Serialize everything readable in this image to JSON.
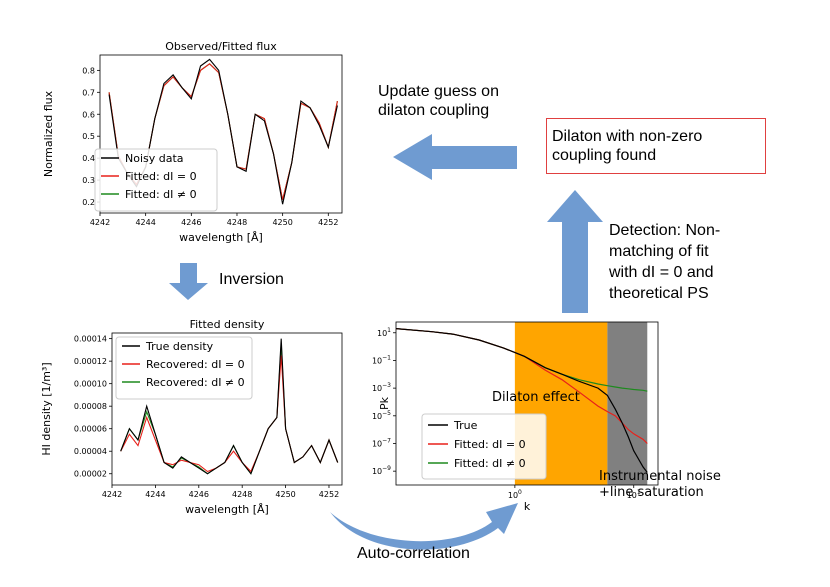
{
  "colors": {
    "arrow": "#6f9bd1",
    "black": "#000000",
    "red": "#e8201a",
    "green": "#1e8a1e",
    "orange": "#ffa500",
    "grey": "#808080",
    "box_border": "#e04040"
  },
  "labels": {
    "update_guess": [
      "Update guess on",
      "dilaton coupling"
    ],
    "found": [
      "Dilaton with non-zero",
      "coupling found"
    ],
    "detection": [
      "Detection: Non-",
      "matching of fit",
      "with dI = 0 and",
      "theoretical PS"
    ],
    "inversion": "Inversion",
    "autocorrelation": "Auto-correlation"
  },
  "chart_data": [
    {
      "type": "line",
      "title": "Observed/Fitted flux",
      "xlabel": "wavelength [Å]",
      "ylabel": "Normalized flux",
      "xlim": [
        4242,
        4252.6
      ],
      "ylim": [
        0.15,
        0.87
      ],
      "xticks": [
        "4242",
        "4244",
        "4246",
        "4248",
        "4250",
        "4252"
      ],
      "yticks": [
        "0.2",
        "0.3",
        "0.4",
        "0.5",
        "0.6",
        "0.7",
        "0.8"
      ],
      "legend": [
        {
          "name": "Noisy data",
          "color": "black"
        },
        {
          "name": "Fitted: dI = 0",
          "color": "red"
        },
        {
          "name": "Fitted: dI ≠ 0",
          "color": "green"
        }
      ],
      "legend_position": "lower-left",
      "x": [
        4242.4,
        4242.8,
        4243.2,
        4243.6,
        4244.0,
        4244.4,
        4244.8,
        4245.2,
        4245.6,
        4246.0,
        4246.4,
        4246.8,
        4247.2,
        4247.6,
        4248.0,
        4248.4,
        4248.8,
        4249.2,
        4249.6,
        4250.0,
        4250.4,
        4250.8,
        4251.2,
        4251.6,
        4252.0,
        4252.4
      ],
      "series": [
        {
          "name": "Noisy data",
          "values": [
            0.69,
            0.4,
            0.33,
            0.27,
            0.36,
            0.58,
            0.74,
            0.78,
            0.72,
            0.67,
            0.82,
            0.85,
            0.8,
            0.6,
            0.36,
            0.34,
            0.6,
            0.57,
            0.42,
            0.19,
            0.38,
            0.66,
            0.63,
            0.55,
            0.45,
            0.64
          ]
        },
        {
          "name": "Fitted: dI = 0",
          "values": [
            0.7,
            0.41,
            0.33,
            0.28,
            0.36,
            0.58,
            0.73,
            0.77,
            0.72,
            0.68,
            0.8,
            0.83,
            0.79,
            0.6,
            0.36,
            0.35,
            0.6,
            0.58,
            0.42,
            0.21,
            0.38,
            0.65,
            0.63,
            0.56,
            0.45,
            0.66
          ]
        },
        {
          "name": "Fitted: dI ≠ 0",
          "values": [
            0.7,
            0.41,
            0.33,
            0.28,
            0.36,
            0.58,
            0.73,
            0.77,
            0.72,
            0.68,
            0.8,
            0.83,
            0.79,
            0.6,
            0.36,
            0.35,
            0.6,
            0.58,
            0.42,
            0.21,
            0.38,
            0.65,
            0.63,
            0.56,
            0.45,
            0.66
          ]
        }
      ]
    },
    {
      "type": "line",
      "title": "Fitted density",
      "xlabel": "wavelength [Å]",
      "ylabel": "HI density [1/m³]",
      "xlim": [
        4242,
        4252.6
      ],
      "ylim": [
        1e-05,
        0.000145
      ],
      "xticks": [
        "4242",
        "4244",
        "4246",
        "4248",
        "4250",
        "4252"
      ],
      "yticks": [
        "0.00002",
        "0.00004",
        "0.00006",
        "0.00008",
        "0.00010",
        "0.00012",
        "0.00014"
      ],
      "legend": [
        {
          "name": "True density",
          "color": "black"
        },
        {
          "name": "Recovered: dI = 0",
          "color": "red"
        },
        {
          "name": "Recovered: dI ≠ 0",
          "color": "green"
        }
      ],
      "legend_position": "upper-left",
      "x": [
        4242.4,
        4242.8,
        4243.2,
        4243.6,
        4244.0,
        4244.4,
        4244.8,
        4245.2,
        4245.6,
        4246.0,
        4246.4,
        4246.8,
        4247.2,
        4247.6,
        4248.0,
        4248.4,
        4248.8,
        4249.2,
        4249.6,
        4249.8,
        4250.0,
        4250.4,
        4250.8,
        4251.2,
        4251.6,
        4252.0,
        4252.4
      ],
      "series": [
        {
          "name": "True density",
          "values": [
            4e-05,
            6e-05,
            5e-05,
            8e-05,
            5.5e-05,
            3e-05,
            2.5e-05,
            3.5e-05,
            3e-05,
            2.5e-05,
            2e-05,
            2.5e-05,
            3e-05,
            4.5e-05,
            3e-05,
            2e-05,
            4e-05,
            6e-05,
            7e-05,
            0.00014,
            6e-05,
            3e-05,
            3.5e-05,
            4.5e-05,
            3e-05,
            5e-05,
            3e-05
          ]
        },
        {
          "name": "Recovered: dI = 0",
          "values": [
            4e-05,
            5.5e-05,
            4.5e-05,
            7e-05,
            5e-05,
            3e-05,
            2.8e-05,
            3.2e-05,
            3e-05,
            2.8e-05,
            2.2e-05,
            2.5e-05,
            3e-05,
            4e-05,
            3e-05,
            2.2e-05,
            4e-05,
            6e-05,
            7e-05,
            0.000125,
            6e-05,
            3e-05,
            3.5e-05,
            4.5e-05,
            3e-05,
            5e-05,
            3e-05
          ]
        },
        {
          "name": "Recovered: dI ≠ 0",
          "values": [
            4e-05,
            6e-05,
            5e-05,
            7.5e-05,
            5.5e-05,
            3e-05,
            2.6e-05,
            3.4e-05,
            3e-05,
            2.6e-05,
            2e-05,
            2.5e-05,
            3e-05,
            4.5e-05,
            3e-05,
            2e-05,
            4e-05,
            6e-05,
            7e-05,
            0.000135,
            6e-05,
            3e-05,
            3.5e-05,
            4.5e-05,
            3e-05,
            5e-05,
            3e-05
          ]
        }
      ]
    },
    {
      "type": "line",
      "title": "",
      "xlabel": "k",
      "ylabel": "Pk",
      "xscale": "log",
      "yscale": "log",
      "xlim": [
        0.1,
        16
      ],
      "ylim": [
        1e-10,
        60
      ],
      "xticks": [
        "10^0",
        "10^1"
      ],
      "yticks": [
        "10^1",
        "10^-1",
        "10^-3",
        "10^-5",
        "10^-7",
        "10^-9"
      ],
      "legend": [
        {
          "name": "True",
          "color": "black"
        },
        {
          "name": "Fitted: dI = 0",
          "color": "red"
        },
        {
          "name": "Fitted: dI ≠ 0",
          "color": "green"
        }
      ],
      "legend_position": "lower-left",
      "regions": [
        {
          "label": "Dilaton effect",
          "from": 1,
          "to": 6,
          "color": "orange"
        },
        {
          "label": "Instrumental noise +line saturation",
          "from": 6,
          "to": 13,
          "color": "grey"
        }
      ],
      "x": [
        0.1,
        0.2,
        0.3,
        0.5,
        0.8,
        1.2,
        1.8,
        2.5,
        3.5,
        5,
        6,
        7,
        8,
        9,
        10,
        12,
        13
      ],
      "series": [
        {
          "name": "True",
          "values": [
            20,
            12,
            8,
            3,
            0.8,
            0.2,
            0.03,
            0.01,
            0.003,
            0.001,
            0.0003,
            3e-05,
            3e-06,
            3e-07,
            3e-08,
            2e-09,
            8e-10
          ]
        },
        {
          "name": "Fitted: dI = 0",
          "values": [
            20,
            12,
            8,
            3,
            0.8,
            0.2,
            0.02,
            0.004,
            0.0005,
            5e-05,
            2e-05,
            1e-05,
            3e-06,
            1e-06,
            5e-07,
            2e-07,
            1e-07
          ]
        },
        {
          "name": "Fitted: dI ≠ 0",
          "values": [
            20,
            12,
            8,
            3,
            0.8,
            0.2,
            0.03,
            0.01,
            0.004,
            0.002,
            0.0015,
            0.0012,
            0.001,
            0.0009,
            0.0008,
            0.0007,
            0.0006
          ]
        }
      ]
    }
  ],
  "region_labels": {
    "dilaton": "Dilaton effect",
    "noise": [
      "Instrumental noise",
      "+line saturation"
    ]
  }
}
